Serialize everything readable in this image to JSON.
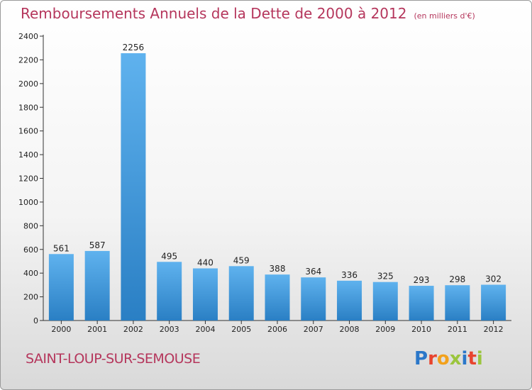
{
  "header": {
    "title": "Remboursements Annuels de la Dette de 2000 à 2012",
    "unit": "(en milliers d'€)"
  },
  "footer": {
    "commune": "SAINT-LOUP-SUR-SEMOUSE",
    "logo_letters": [
      "P",
      "r",
      "o",
      "x",
      "i",
      "t",
      "i"
    ],
    "logo_colors": [
      "#2a77c9",
      "#e8442e",
      "#f2a11c",
      "#9bc53d",
      "#2a77c9",
      "#e8442e",
      "#9bc53d"
    ]
  },
  "chart_data": {
    "type": "bar",
    "title": "Remboursements Annuels de la Dette de 2000 à 2012",
    "xlabel": "",
    "ylabel": "",
    "categories": [
      "2000",
      "2001",
      "2002",
      "2003",
      "2004",
      "2005",
      "2006",
      "2007",
      "2008",
      "2009",
      "2010",
      "2011",
      "2012"
    ],
    "values": [
      561,
      587,
      2256,
      495,
      440,
      459,
      388,
      364,
      336,
      325,
      293,
      298,
      302
    ],
    "ylim": [
      0,
      2400
    ],
    "yticks": [
      0,
      200,
      400,
      600,
      800,
      1000,
      1200,
      1400,
      1600,
      1800,
      2000,
      2200,
      2400
    ],
    "grid": false,
    "bar_color": "#3d9ae0"
  }
}
